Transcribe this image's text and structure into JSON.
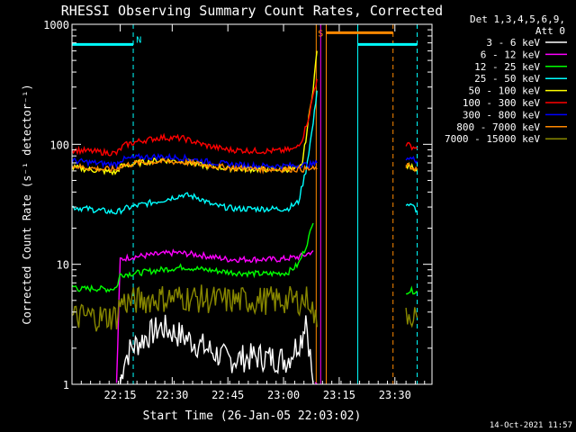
{
  "chart_data": {
    "type": "line",
    "title": "RHESSI Observing Summary Count Rates, Corrected",
    "xlabel": "Start Time (26-Jan-05 22:03:02)",
    "ylabel": "Corrected Count Rate (s⁻¹ detector⁻¹)",
    "yscale": "log",
    "ylim": [
      1,
      1000
    ],
    "xlim_minutes": [
      0,
      97
    ],
    "x_ticks": [
      {
        "m": 13,
        "label": "22:15"
      },
      {
        "m": 27,
        "label": "22:30"
      },
      {
        "m": 42,
        "label": "22:45"
      },
      {
        "m": 57,
        "label": "23:00"
      },
      {
        "m": 72,
        "label": "23:15"
      },
      {
        "m": 87,
        "label": "23:30"
      }
    ],
    "y_ticks": [
      {
        "v": 1,
        "label": "1"
      },
      {
        "v": 10,
        "label": "10"
      },
      {
        "v": 100,
        "label": "100"
      },
      {
        "v": 1000,
        "label": "1000"
      }
    ],
    "legend_header": [
      "Det 1,3,4,5,6,9,",
      "Att 0"
    ],
    "legend_position": "right",
    "series": [
      {
        "name": "3 - 6 keV",
        "color": "#ffffff",
        "segments": [
          [
            [
              13,
              1
            ],
            [
              14,
              1.6
            ],
            [
              16,
              2
            ],
            [
              20,
              2.5
            ],
            [
              24,
              3
            ],
            [
              30,
              2.5
            ],
            [
              36,
              2
            ],
            [
              42,
              1.6
            ],
            [
              50,
              1.7
            ],
            [
              58,
              1.6
            ],
            [
              62,
              2.5
            ],
            [
              63,
              3.8
            ],
            [
              65,
              1
            ]
          ]
        ]
      },
      {
        "name": "6 - 12 keV",
        "color": "#ff00ff",
        "segments": [
          [
            [
              12,
              1
            ],
            [
              13,
              11
            ],
            [
              16,
              11.5
            ],
            [
              22,
              12
            ],
            [
              28,
              12.5
            ],
            [
              34,
              12
            ],
            [
              42,
              11
            ],
            [
              50,
              11
            ],
            [
              56,
              11
            ],
            [
              61,
              11.5
            ],
            [
              63,
              12
            ],
            [
              65,
              13
            ]
          ],
          [
            [
              65.5,
              1
            ],
            [
              66,
              1
            ]
          ]
        ]
      },
      {
        "name": "12 - 25 keV",
        "color": "#00ff00",
        "segments": [
          [
            [
              0,
              6.5
            ],
            [
              1,
              6.5
            ],
            [
              2,
              6.2
            ],
            [
              6,
              6.3
            ],
            [
              10,
              6.2
            ],
            [
              12,
              6.4
            ],
            [
              13,
              8.2
            ],
            [
              18,
              8.5
            ],
            [
              24,
              9
            ],
            [
              30,
              9.5
            ],
            [
              36,
              9
            ],
            [
              44,
              8.5
            ],
            [
              52,
              8.3
            ],
            [
              58,
              8.5
            ],
            [
              61,
              10
            ],
            [
              63,
              14
            ],
            [
              65,
              22
            ]
          ],
          [
            [
              90,
              6
            ],
            [
              93,
              6
            ]
          ]
        ]
      },
      {
        "name": "25 - 50 keV",
        "color": "#00ffff",
        "segments": [
          [
            [
              0,
              30
            ],
            [
              4,
              29
            ],
            [
              8,
              28
            ],
            [
              12,
              27
            ],
            [
              14,
              29
            ],
            [
              18,
              31
            ],
            [
              24,
              34
            ],
            [
              30,
              38
            ],
            [
              34,
              36
            ],
            [
              38,
              31
            ],
            [
              44,
              29
            ],
            [
              50,
              29
            ],
            [
              58,
              29
            ],
            [
              61,
              33
            ],
            [
              63,
              60
            ],
            [
              65,
              150
            ],
            [
              66,
              280
            ]
          ],
          [
            [
              90,
              32
            ],
            [
              92,
              30
            ],
            [
              93,
              28
            ]
          ]
        ]
      },
      {
        "name": "50 - 100 keV",
        "color": "#ffff00",
        "segments": [
          [
            [
              0,
              64
            ],
            [
              4,
              62
            ],
            [
              8,
              60
            ],
            [
              12,
              58
            ],
            [
              13,
              65
            ],
            [
              18,
              70
            ],
            [
              24,
              74
            ],
            [
              30,
              72
            ],
            [
              36,
              66
            ],
            [
              42,
              63
            ],
            [
              50,
              62
            ],
            [
              58,
              62
            ],
            [
              61,
              62
            ],
            [
              62,
              68
            ],
            [
              63,
              110
            ],
            [
              65,
              300
            ],
            [
              66,
              600
            ]
          ],
          [
            [
              90,
              66
            ],
            [
              92,
              64
            ],
            [
              93,
              62
            ]
          ]
        ]
      },
      {
        "name": "100 - 300 keV",
        "color": "#ff0000",
        "segments": [
          [
            [
              0,
              90
            ],
            [
              4,
              88
            ],
            [
              8,
              86
            ],
            [
              12,
              84
            ],
            [
              14,
              98
            ],
            [
              18,
              106
            ],
            [
              24,
              114
            ],
            [
              30,
              112
            ],
            [
              36,
              98
            ],
            [
              42,
              90
            ],
            [
              50,
              88
            ],
            [
              56,
              88
            ],
            [
              60,
              91
            ],
            [
              62,
              110
            ],
            [
              64,
              180
            ],
            [
              65,
              260
            ],
            [
              66,
              350
            ]
          ],
          [
            [
              90,
              100
            ],
            [
              92,
              95
            ],
            [
              93,
              92
            ]
          ]
        ]
      },
      {
        "name": "300 - 800 keV",
        "color": "#0000ff",
        "segments": [
          [
            [
              0,
              73
            ],
            [
              4,
              71
            ],
            [
              8,
              69
            ],
            [
              12,
              68
            ],
            [
              13,
              74
            ],
            [
              18,
              78
            ],
            [
              24,
              79
            ],
            [
              30,
              77
            ],
            [
              36,
              72
            ],
            [
              42,
              68
            ],
            [
              50,
              66
            ],
            [
              58,
              66
            ],
            [
              62,
              67
            ],
            [
              65,
              68
            ],
            [
              66,
              70
            ]
          ],
          [
            [
              90,
              78
            ],
            [
              92,
              75
            ],
            [
              93,
              73
            ]
          ]
        ]
      },
      {
        "name": "800 - 7000 keV",
        "color": "#ff8800",
        "segments": [
          [
            [
              0,
              66
            ],
            [
              4,
              64
            ],
            [
              8,
              62
            ],
            [
              12,
              62
            ],
            [
              13,
              66
            ],
            [
              18,
              70
            ],
            [
              24,
              72
            ],
            [
              30,
              71
            ],
            [
              36,
              67
            ],
            [
              42,
              64
            ],
            [
              50,
              62
            ],
            [
              58,
              62
            ],
            [
              62,
              62
            ],
            [
              66,
              62
            ]
          ],
          [
            [
              90,
              66
            ],
            [
              92,
              64
            ],
            [
              93,
              62
            ]
          ]
        ]
      },
      {
        "name": "7000 - 15000 keV",
        "color": "#888800",
        "segments": [
          [
            [
              0,
              3.6
            ],
            [
              4,
              3.7
            ],
            [
              8,
              3.6
            ],
            [
              12,
              3.7
            ],
            [
              13,
              4.8
            ],
            [
              18,
              5
            ],
            [
              24,
              5.2
            ],
            [
              30,
              5.3
            ],
            [
              36,
              5.1
            ],
            [
              42,
              5
            ],
            [
              50,
              5
            ],
            [
              58,
              5
            ],
            [
              62,
              5
            ],
            [
              64,
              5.2
            ],
            [
              66,
              3
            ]
          ],
          [
            [
              90,
              4
            ],
            [
              92,
              3.8
            ],
            [
              93,
              3.6
            ]
          ]
        ]
      }
    ],
    "flag_bars": [
      {
        "label": "",
        "color": "#00ffff",
        "y": 680,
        "x0": 0,
        "x1": 16.5
      },
      {
        "label": "N",
        "color": "#00ffff",
        "y": 750,
        "x0": 18,
        "x1": 18
      },
      {
        "label": "",
        "color": "#00ffff",
        "y": 680,
        "x0": 77,
        "x1": 93
      },
      {
        "label": "S",
        "color": "#ff8800",
        "y": 850,
        "x0": 67,
        "x1": 67
      },
      {
        "label": "",
        "color": "#ff8800",
        "y": 850,
        "x0": 68.5,
        "x1": 86.5
      }
    ],
    "vlines": [
      {
        "m": 0,
        "color": "#00ffff",
        "style": "solid"
      },
      {
        "m": 16.5,
        "color": "#00ffff",
        "style": "dashed"
      },
      {
        "m": 65.8,
        "color": "#ff8800",
        "style": "solid"
      },
      {
        "m": 67,
        "color": "#ff00ff",
        "style": "solid"
      },
      {
        "m": 68.5,
        "color": "#ff8800",
        "style": "solid"
      },
      {
        "m": 77,
        "color": "#00ffff",
        "style": "solid"
      },
      {
        "m": 86.5,
        "color": "#ff8800",
        "style": "dashed"
      },
      {
        "m": 93,
        "color": "#00ffff",
        "style": "dashed"
      }
    ],
    "timestamp": "14-Oct-2021 11:57"
  }
}
